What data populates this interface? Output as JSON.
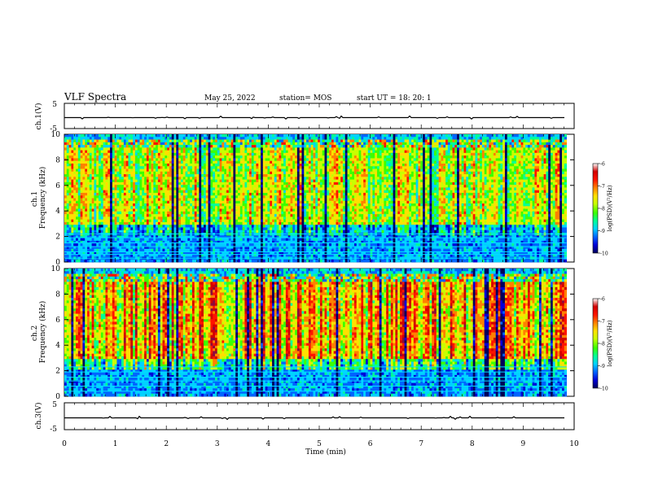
{
  "header": {
    "title": "VLF Spectra",
    "date": "May 25, 2022",
    "station": "station= MOS",
    "start": "start  UT =   18: 20: 1"
  },
  "colors": {
    "colormap": [
      "#00005a",
      "#0000d8",
      "#0064ff",
      "#00d2ff",
      "#00ff96",
      "#3cff00",
      "#c8ff00",
      "#ffe000",
      "#ff8000",
      "#ff1400",
      "#d20000",
      "#8c0a3c"
    ],
    "trace": "#000000",
    "guide_lines": "#00e0ff"
  },
  "chart_data": [
    {
      "type": "line",
      "panel": "ch1-waveform",
      "ylabel": "ch.1(V)",
      "yticks": [
        "5",
        "-5"
      ],
      "ylim": [
        -5,
        5
      ],
      "xlim": [
        0,
        10
      ],
      "baseline": 0,
      "note_visible": "flat trace with small spikes"
    },
    {
      "type": "heatmap",
      "panel": "ch1-spectrogram",
      "ylabel": "ch.1\nFrequency (kHz)",
      "yticks": [
        "0",
        "2",
        "4",
        "6",
        "8",
        "10"
      ],
      "ylim": [
        0,
        10
      ],
      "xlim": [
        0,
        9.85
      ],
      "colorbar": {
        "label": "log(PSD)(V²/Hz)",
        "ticks": [
          "-6",
          "-7",
          "-8",
          "-9",
          "-10"
        ],
        "range": [
          -10,
          -6
        ]
      },
      "bands_kHz": [
        0.3,
        0.6,
        0.8,
        1.2,
        1.5,
        1.9,
        2.2
      ]
    },
    {
      "type": "heatmap",
      "panel": "ch2-spectrogram",
      "ylabel": "ch.2\nFrequency (kHz)",
      "yticks": [
        "0",
        "2",
        "4",
        "6",
        "8",
        "10"
      ],
      "ylim": [
        0,
        10
      ],
      "xlim": [
        0,
        9.85
      ],
      "colorbar": {
        "label": "log(PSD)(V²/Hz)",
        "ticks": [
          "-6",
          "-7",
          "-8",
          "-9",
          "-10"
        ],
        "range": [
          -10,
          -6
        ]
      },
      "bands_kHz": [
        0.4,
        0.8,
        1.2,
        1.5,
        1.9,
        2.3
      ]
    },
    {
      "type": "line",
      "panel": "ch3-waveform",
      "ylabel": "ch.3(V)",
      "yticks": [
        "5",
        "-5"
      ],
      "ylim": [
        -5,
        5
      ],
      "xlim": [
        0,
        10
      ],
      "baseline": 0
    }
  ],
  "xaxis": {
    "label": "Time  (min)",
    "ticks": [
      "0",
      "1",
      "2",
      "3",
      "4",
      "5",
      "6",
      "7",
      "8",
      "9",
      "10"
    ],
    "range": [
      0,
      10
    ]
  }
}
